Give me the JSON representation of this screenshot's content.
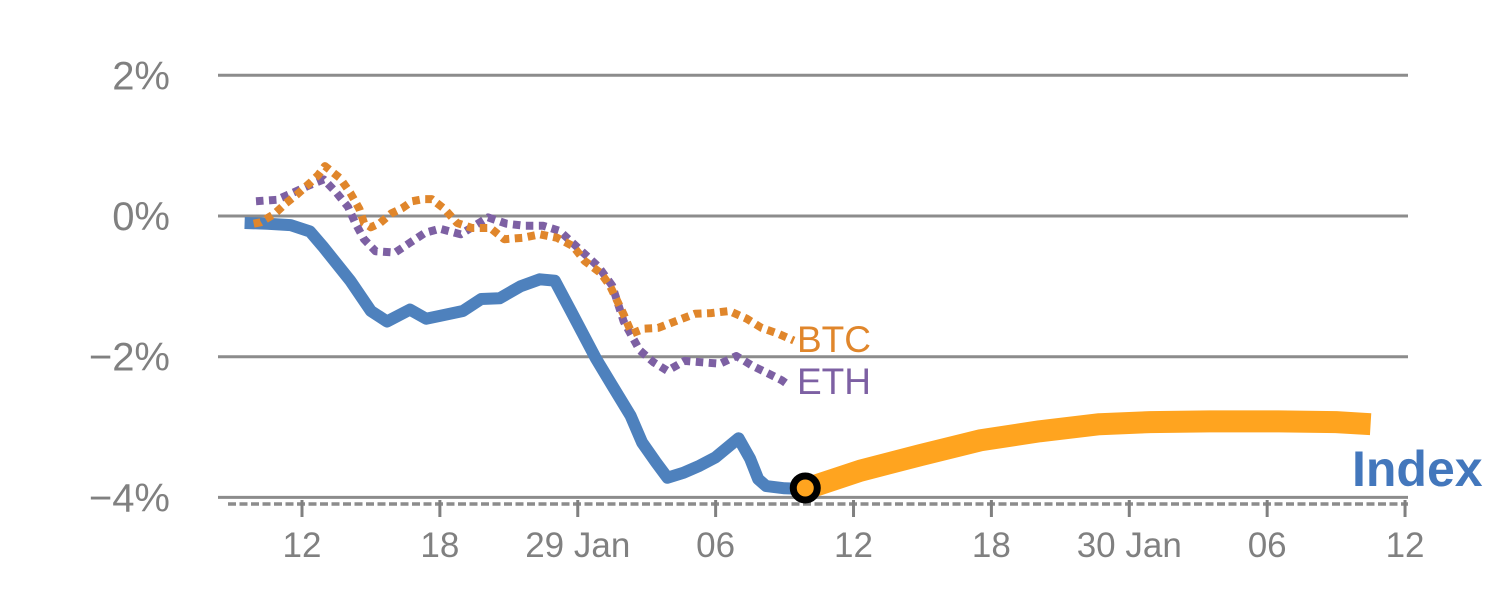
{
  "chart_data": {
    "type": "line",
    "title": "",
    "x_axis": {
      "unit": "days (0 = first labeled tick)",
      "grid": false,
      "ticks": [
        {
          "day": 0,
          "label": "12"
        },
        {
          "day": 6,
          "label": "18"
        },
        {
          "day": 12,
          "label": "29 Jan"
        },
        {
          "day": 18,
          "label": "06"
        },
        {
          "day": 24,
          "label": "12"
        },
        {
          "day": 30,
          "label": "18"
        },
        {
          "day": 36,
          "label": "30 Jan"
        },
        {
          "day": 42,
          "label": "06"
        },
        {
          "day": 48,
          "label": "12"
        }
      ]
    },
    "y_axis": {
      "unit": "percent return",
      "grid": true,
      "range": [
        -4,
        2
      ],
      "ticks": [
        {
          "value": 2,
          "label": "2%"
        },
        {
          "value": 0,
          "label": "0%"
        },
        {
          "value": -2,
          "label": "−2%"
        },
        {
          "value": -4,
          "label": "−4%"
        }
      ]
    },
    "legend_position": "inline-end-of-line labels",
    "series": [
      {
        "id": "index-history",
        "name": "Index",
        "style": "solid",
        "color": "#4E81BD",
        "width": 12,
        "points": [
          [
            -2.5,
            -0.1
          ],
          [
            -1.5,
            -0.11
          ],
          [
            -0.5,
            -0.13
          ],
          [
            0.35,
            -0.22
          ],
          [
            0.9,
            -0.43
          ],
          [
            2.1,
            -0.92
          ],
          [
            3.0,
            -1.35
          ],
          [
            3.7,
            -1.5
          ],
          [
            4.7,
            -1.33
          ],
          [
            5.4,
            -1.46
          ],
          [
            6.0,
            -1.42
          ],
          [
            7.0,
            -1.35
          ],
          [
            7.8,
            -1.18
          ],
          [
            8.6,
            -1.17
          ],
          [
            9.5,
            -1.0
          ],
          [
            10.35,
            -0.9
          ],
          [
            11.0,
            -0.92
          ],
          [
            11.7,
            -1.35
          ],
          [
            12.2,
            -1.66
          ],
          [
            12.8,
            -2.03
          ],
          [
            13.5,
            -2.41
          ],
          [
            14.3,
            -2.84
          ],
          [
            14.8,
            -3.22
          ],
          [
            15.4,
            -3.5
          ],
          [
            15.9,
            -3.72
          ],
          [
            16.6,
            -3.65
          ],
          [
            17.3,
            -3.55
          ],
          [
            18.0,
            -3.43
          ],
          [
            19.0,
            -3.16
          ],
          [
            19.5,
            -3.45
          ],
          [
            19.85,
            -3.74
          ],
          [
            20.2,
            -3.84
          ],
          [
            21.0,
            -3.87
          ],
          [
            21.9,
            -3.88
          ]
        ]
      },
      {
        "id": "eth",
        "name": "ETH",
        "style": "dotted",
        "color": "#7D60A3",
        "width": 8,
        "points": [
          [
            -2.0,
            0.21
          ],
          [
            -1.1,
            0.23
          ],
          [
            -0.4,
            0.33
          ],
          [
            0.35,
            0.44
          ],
          [
            0.95,
            0.52
          ],
          [
            1.5,
            0.33
          ],
          [
            2.0,
            0.13
          ],
          [
            2.3,
            -0.09
          ],
          [
            2.7,
            -0.33
          ],
          [
            3.2,
            -0.5
          ],
          [
            4.05,
            -0.52
          ],
          [
            4.7,
            -0.38
          ],
          [
            5.35,
            -0.24
          ],
          [
            6.0,
            -0.18
          ],
          [
            6.9,
            -0.26
          ],
          [
            7.5,
            -0.14
          ],
          [
            8.1,
            -0.02
          ],
          [
            8.9,
            -0.11
          ],
          [
            9.7,
            -0.14
          ],
          [
            10.5,
            -0.14
          ],
          [
            11.2,
            -0.21
          ],
          [
            12.4,
            -0.57
          ],
          [
            12.9,
            -0.72
          ],
          [
            13.5,
            -0.99
          ],
          [
            14.0,
            -1.5
          ],
          [
            14.7,
            -1.91
          ],
          [
            15.3,
            -2.08
          ],
          [
            15.9,
            -2.2
          ],
          [
            16.65,
            -2.06
          ],
          [
            17.4,
            -2.08
          ],
          [
            18.2,
            -2.1
          ],
          [
            18.9,
            -1.99
          ],
          [
            19.6,
            -2.13
          ],
          [
            20.3,
            -2.24
          ],
          [
            20.9,
            -2.34
          ],
          [
            21.2,
            -2.41
          ]
        ]
      },
      {
        "id": "btc",
        "name": "BTC",
        "style": "dotted",
        "color": "#E0862B",
        "width": 8,
        "points": [
          [
            -2.1,
            -0.11
          ],
          [
            -1.8,
            -0.09
          ],
          [
            -1.2,
            0.03
          ],
          [
            -0.7,
            0.18
          ],
          [
            -0.2,
            0.31
          ],
          [
            0.35,
            0.47
          ],
          [
            0.7,
            0.58
          ],
          [
            1.0,
            0.71
          ],
          [
            1.65,
            0.54
          ],
          [
            2.1,
            0.33
          ],
          [
            2.5,
            0.1
          ],
          [
            2.7,
            -0.1
          ],
          [
            3.0,
            -0.16
          ],
          [
            3.4,
            -0.1
          ],
          [
            3.9,
            0.04
          ],
          [
            4.35,
            0.11
          ],
          [
            4.8,
            0.21
          ],
          [
            5.3,
            0.24
          ],
          [
            5.65,
            0.24
          ],
          [
            6.2,
            0.1
          ],
          [
            6.75,
            -0.1
          ],
          [
            7.4,
            -0.17
          ],
          [
            8.2,
            -0.17
          ],
          [
            8.8,
            -0.33
          ],
          [
            9.6,
            -0.31
          ],
          [
            10.35,
            -0.26
          ],
          [
            11.1,
            -0.31
          ],
          [
            11.8,
            -0.43
          ],
          [
            12.3,
            -0.64
          ],
          [
            13.0,
            -0.81
          ],
          [
            13.4,
            -0.99
          ],
          [
            14.0,
            -1.4
          ],
          [
            14.35,
            -1.67
          ],
          [
            14.9,
            -1.6
          ],
          [
            15.5,
            -1.59
          ],
          [
            16.3,
            -1.49
          ],
          [
            17.1,
            -1.39
          ],
          [
            17.8,
            -1.38
          ],
          [
            18.6,
            -1.35
          ],
          [
            19.35,
            -1.46
          ],
          [
            20.0,
            -1.59
          ],
          [
            20.7,
            -1.67
          ],
          [
            21.4,
            -1.77
          ]
        ]
      },
      {
        "id": "index-forecast",
        "name": "Index (forward segment)",
        "style": "solid",
        "color": "#FFA41F",
        "width": 22,
        "points": [
          [
            21.9,
            -3.88
          ],
          [
            24.3,
            -3.62
          ],
          [
            26.9,
            -3.4
          ],
          [
            29.5,
            -3.19
          ],
          [
            32.1,
            -3.06
          ],
          [
            34.7,
            -2.96
          ],
          [
            36.9,
            -2.93
          ],
          [
            39.5,
            -2.92
          ],
          [
            42.5,
            -2.92
          ],
          [
            45.0,
            -2.93
          ],
          [
            46.5,
            -2.96
          ]
        ]
      }
    ],
    "marker": {
      "name": "forecast start marker",
      "day": 21.9,
      "pct": -3.88,
      "fill": "#FFA41F",
      "ring": "#000000"
    },
    "labels": {
      "btc": "BTC",
      "eth": "ETH",
      "index": "Index"
    },
    "colors": {
      "grid": "#8C8C8C",
      "axis_text": "#808080",
      "index_line": "#4E81BD",
      "forecast_line": "#FFA41F",
      "btc_line": "#E0862B",
      "eth_line": "#7D60A3",
      "index_label": "#4377BC"
    }
  }
}
